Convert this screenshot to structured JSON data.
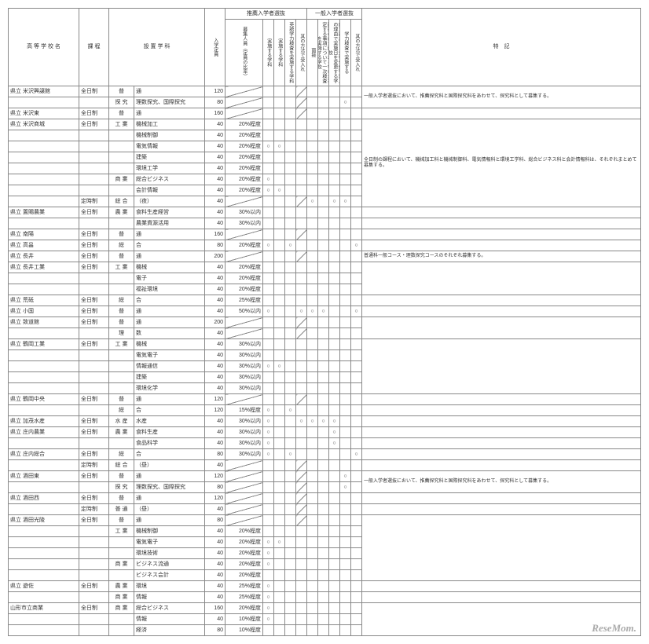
{
  "headers": {
    "school": "高 等 学 校 名",
    "type": "課 程",
    "dept": "設 置 学 科",
    "capacity": "入学定員",
    "rec_group": "推薦入学者選抜",
    "rec_num": "募集人員（定員の比率）",
    "rec_c1": "実施する学科",
    "rec_c2": "実施する学科",
    "rec_c3": "英語学力検査を実施する学科",
    "rec_c4": "其の方法で受入れ",
    "gen_group": "一般入学者選抜",
    "gen_c1": "面接",
    "gen_c2": "面接のほか課される学校が指定する事項について一次検査を実施する学校",
    "gen_c3": "創立記念日・生徒保健管理上の理由で実施日を変更する学校",
    "gen_c4": "学力検査で実施する",
    "gen_c5": "其の方法で受入れ",
    "notes": "特　記"
  },
  "watermark": "ReseMom.",
  "rows": [
    {
      "school": "県立 米沢興譲館",
      "type": "全日制",
      "dept_g": "普",
      "dept_s": "通",
      "cap": "120",
      "cols": [
        "",
        "",
        "",
        "diag",
        "",
        "",
        "",
        "",
        "",
        ""
      ],
      "note": "一般入学者選抜において、推薦探究科と国際探究科をあわせて、探究科として募集する。",
      "span": 2
    },
    {
      "school": "",
      "type": "",
      "dept_g": "探 究",
      "dept_s": "理数探究、国際探究",
      "cap": "80",
      "cols": [
        "",
        "",
        "",
        "diag",
        "",
        "",
        "",
        "○",
        "",
        ""
      ],
      "note": ""
    },
    {
      "school": "県立 米沢東",
      "type": "全日制",
      "dept_g": "普",
      "dept_s": "通",
      "cap": "160",
      "cols": [
        "",
        "",
        "",
        "diag",
        "",
        "",
        "",
        "",
        "",
        ""
      ],
      "note": ""
    },
    {
      "school": "県立 米沢商城",
      "type": "全日制",
      "dept_g": "工 業",
      "dept_s": "機械加工",
      "cap": "40",
      "pct": "20%程度",
      "cols": [
        "",
        "",
        "",
        "",
        "",
        "",
        "",
        "",
        "",
        ""
      ],
      "note": "全日制の課程において、機械加工科と機械制御科、電気情報科と環境工学科、総合ビジネス科と会計情報科は、それぞれまとめて募集する。",
      "span": 8
    },
    {
      "school": "",
      "type": "",
      "dept_g": "",
      "dept_s": "機械制御",
      "cap": "40",
      "pct": "20%程度",
      "cols": [
        "",
        "",
        "",
        "",
        "",
        "",
        "",
        "",
        "",
        ""
      ],
      "note": ""
    },
    {
      "school": "",
      "type": "",
      "dept_g": "",
      "dept_s": "電気情報",
      "cap": "40",
      "pct": "20%程度",
      "cols": [
        "○",
        "○",
        "",
        "",
        "",
        "",
        "",
        "",
        "",
        ""
      ],
      "note": ""
    },
    {
      "school": "",
      "type": "",
      "dept_g": "",
      "dept_s": "建築",
      "cap": "40",
      "pct": "20%程度",
      "cols": [
        "",
        "",
        "",
        "",
        "",
        "",
        "",
        "",
        "",
        ""
      ],
      "note": ""
    },
    {
      "school": "",
      "type": "",
      "dept_g": "",
      "dept_s": "環境工学",
      "cap": "40",
      "pct": "20%程度",
      "cols": [
        "",
        "",
        "",
        "",
        "",
        "",
        "",
        "",
        "",
        ""
      ],
      "note": ""
    },
    {
      "school": "",
      "type": "",
      "dept_g": "商 業",
      "dept_s": "総合ビジネス",
      "cap": "40",
      "pct": "20%程度",
      "cols": [
        "○",
        "",
        "",
        "",
        "",
        "",
        "",
        "",
        "",
        ""
      ],
      "note": ""
    },
    {
      "school": "",
      "type": "",
      "dept_g": "",
      "dept_s": "会計情報",
      "cap": "40",
      "pct": "20%程度",
      "cols": [
        "○",
        "○",
        "",
        "",
        "",
        "",
        "",
        "",
        "",
        ""
      ],
      "note": ""
    },
    {
      "school": "",
      "type": "定時制",
      "dept_g": "総 合",
      "dept_s": "（夜）",
      "cap": "40",
      "cols": [
        "",
        "",
        "",
        "diag",
        "○",
        "",
        "○",
        "○",
        "",
        "diag"
      ],
      "note": ""
    },
    {
      "school": "県立 置賜農業",
      "type": "全日制",
      "dept_g": "農 業",
      "dept_s": "食料生産経営",
      "cap": "40",
      "pct": "30%以内",
      "cols": [
        "",
        "",
        "",
        "",
        "",
        "",
        "",
        "",
        "",
        ""
      ],
      "note": ""
    },
    {
      "school": "",
      "type": "",
      "dept_g": "",
      "dept_s": "農業資源活用",
      "cap": "40",
      "pct": "30%以内",
      "cols": [
        "",
        "",
        "",
        "",
        "",
        "",
        "",
        "",
        "",
        ""
      ],
      "note": ""
    },
    {
      "school": "県立 南陽",
      "type": "全日制",
      "dept_g": "普",
      "dept_s": "通",
      "cap": "160",
      "cols": [
        "",
        "",
        "",
        "diag",
        "",
        "",
        "",
        "",
        "",
        ""
      ],
      "note": ""
    },
    {
      "school": "県立 高畠",
      "type": "全日制",
      "dept_g": "総",
      "dept_s": "合",
      "cap": "80",
      "pct": "20%程度",
      "cols": [
        "○",
        "",
        "○",
        "",
        "",
        "",
        "",
        "",
        "○",
        ""
      ],
      "note": ""
    },
    {
      "school": "県立 長井",
      "type": "全日制",
      "dept_g": "普",
      "dept_s": "通",
      "cap": "200",
      "cols": [
        "",
        "",
        "",
        "diag",
        "",
        "",
        "",
        "",
        "",
        ""
      ],
      "note": "普通科一般コース・理数探究コースのそれぞれ募集する。"
    },
    {
      "school": "県立 長井工業",
      "type": "全日制",
      "dept_g": "工 業",
      "dept_s": "機械",
      "cap": "40",
      "pct": "20%程度",
      "cols": [
        "",
        "",
        "",
        "",
        "",
        "",
        "",
        "",
        "",
        ""
      ],
      "note": "",
      "span": 3
    },
    {
      "school": "",
      "type": "",
      "dept_g": "",
      "dept_s": "電子",
      "cap": "40",
      "pct": "20%程度",
      "cols": [
        "",
        "",
        "",
        "",
        "",
        "",
        "",
        "",
        "",
        ""
      ],
      "note": ""
    },
    {
      "school": "",
      "type": "",
      "dept_g": "",
      "dept_s": "福祉環境",
      "cap": "40",
      "pct": "20%程度",
      "cols": [
        "",
        "",
        "",
        "",
        "",
        "",
        "",
        "",
        "",
        ""
      ],
      "note": ""
    },
    {
      "school": "県立 荒砥",
      "type": "全日制",
      "dept_g": "総",
      "dept_s": "合",
      "cap": "40",
      "pct": "25%程度",
      "cols": [
        "",
        "",
        "",
        "",
        "",
        "",
        "",
        "",
        "",
        ""
      ],
      "note": ""
    },
    {
      "school": "県立 小国",
      "type": "全日制",
      "dept_g": "普",
      "dept_s": "通",
      "cap": "40",
      "pct": "50%以内",
      "cols": [
        "○",
        "",
        "",
        "○",
        "○",
        "○",
        "",
        "",
        "○",
        ""
      ],
      "note": ""
    },
    {
      "school": "県立 致道館",
      "type": "全日制",
      "dept_g": "普",
      "dept_s": "通",
      "cap": "200",
      "cols": [
        "",
        "",
        "",
        "diag",
        "",
        "",
        "",
        "",
        "",
        ""
      ],
      "note": "",
      "span": 2
    },
    {
      "school": "",
      "type": "",
      "dept_g": "理",
      "dept_s": "数",
      "cap": "40",
      "cols": [
        "",
        "",
        "",
        "diag",
        "",
        "",
        "",
        "",
        "",
        ""
      ],
      "note": ""
    },
    {
      "school": "県立 鶴岡工業",
      "type": "全日制",
      "dept_g": "工 業",
      "dept_s": "機械",
      "cap": "40",
      "pct": "30%以内",
      "cols": [
        "",
        "",
        "",
        "",
        "",
        "",
        "",
        "",
        "",
        ""
      ],
      "note": "",
      "span": 5
    },
    {
      "school": "",
      "type": "",
      "dept_g": "",
      "dept_s": "電気電子",
      "cap": "40",
      "pct": "30%以内",
      "cols": [
        "",
        "",
        "",
        "",
        "",
        "",
        "",
        "",
        "",
        ""
      ],
      "note": ""
    },
    {
      "school": "",
      "type": "",
      "dept_g": "",
      "dept_s": "情報通信",
      "cap": "40",
      "pct": "30%以内",
      "cols": [
        "○",
        "○",
        "",
        "",
        "",
        "",
        "",
        "",
        "",
        ""
      ],
      "note": ""
    },
    {
      "school": "",
      "type": "",
      "dept_g": "",
      "dept_s": "建築",
      "cap": "40",
      "pct": "30%以内",
      "cols": [
        "",
        "",
        "",
        "",
        "",
        "",
        "",
        "",
        "",
        ""
      ],
      "note": ""
    },
    {
      "school": "",
      "type": "",
      "dept_g": "",
      "dept_s": "環境化学",
      "cap": "40",
      "pct": "30%以内",
      "cols": [
        "",
        "",
        "",
        "",
        "",
        "",
        "",
        "",
        "",
        ""
      ],
      "note": ""
    },
    {
      "school": "県立 鶴岡中央",
      "type": "全日制",
      "dept_g": "普",
      "dept_s": "通",
      "cap": "120",
      "cols": [
        "",
        "",
        "",
        "diag",
        "",
        "",
        "",
        "",
        "",
        ""
      ],
      "note": ""
    },
    {
      "school": "",
      "type": "",
      "dept_g": "総",
      "dept_s": "合",
      "cap": "120",
      "pct": "15%程度",
      "cols": [
        "○",
        "",
        "○",
        "",
        "",
        "",
        "",
        "",
        "",
        ""
      ],
      "note": ""
    },
    {
      "school": "県立 加茂水産",
      "type": "全日制",
      "dept_g": "水 産",
      "dept_s": "水産",
      "cap": "40",
      "pct": "30%以内",
      "cols": [
        "○",
        "",
        "",
        "○",
        "○",
        "○",
        "○",
        "",
        "",
        ""
      ],
      "note": ""
    },
    {
      "school": "県立 庄内農業",
      "type": "全日制",
      "dept_g": "農 業",
      "dept_s": "食料生産",
      "cap": "40",
      "pct": "30%以内",
      "cols": [
        "○",
        "",
        "",
        "",
        "",
        "",
        "○",
        "",
        "",
        ""
      ],
      "note": ""
    },
    {
      "school": "",
      "type": "",
      "dept_g": "",
      "dept_s": "食品科学",
      "cap": "40",
      "pct": "30%以内",
      "cols": [
        "○",
        "",
        "",
        "",
        "",
        "",
        "○",
        "",
        "",
        ""
      ],
      "note": ""
    },
    {
      "school": "県立 庄内総合",
      "type": "全日制",
      "dept_g": "総",
      "dept_s": "合",
      "cap": "80",
      "pct": "30%以内",
      "cols": [
        "○",
        "",
        "○",
        "",
        "",
        "",
        "",
        "",
        "○",
        ""
      ],
      "note": ""
    },
    {
      "school": "",
      "type": "定時制",
      "dept_g": "総 合",
      "dept_s": "（昼）",
      "cap": "40",
      "cols": [
        "",
        "",
        "",
        "diag",
        "",
        "",
        "",
        "",
        "",
        "diag"
      ],
      "note": ""
    },
    {
      "school": "県立 酒田東",
      "type": "全日制",
      "dept_g": "普",
      "dept_s": "通",
      "cap": "120",
      "cols": [
        "",
        "",
        "",
        "diag",
        "",
        "",
        "",
        "○",
        "",
        ""
      ],
      "note": "一般入学者選抜において、推薦探究科と国際探究科をあわせて、探究科として募集する。",
      "span": 2
    },
    {
      "school": "",
      "type": "",
      "dept_g": "探 究",
      "dept_s": "理数探究、国際探究",
      "cap": "80",
      "cols": [
        "",
        "",
        "",
        "diag",
        "",
        "",
        "",
        "○",
        "",
        ""
      ],
      "note": ""
    },
    {
      "school": "県立 酒田西",
      "type": "全日制",
      "dept_g": "普",
      "dept_s": "通",
      "cap": "120",
      "cols": [
        "",
        "",
        "",
        "diag",
        "",
        "",
        "",
        "",
        "",
        ""
      ],
      "note": ""
    },
    {
      "school": "",
      "type": "定時制",
      "dept_g": "普 通",
      "dept_s": "（昼）",
      "cap": "40",
      "cols": [
        "",
        "",
        "",
        "diag",
        "",
        "",
        "",
        "",
        "",
        "diag"
      ],
      "note": ""
    },
    {
      "school": "県立 酒田光陵",
      "type": "全日制",
      "dept_g": "普",
      "dept_s": "通",
      "cap": "80",
      "cols": [
        "",
        "",
        "",
        "diag",
        "",
        "",
        "",
        "",
        "",
        ""
      ],
      "note": "",
      "span": 6
    },
    {
      "school": "",
      "type": "",
      "dept_g": "工 業",
      "dept_s": "機械制御",
      "cap": "40",
      "pct": "20%程度",
      "cols": [
        "",
        "",
        "",
        "",
        "",
        "",
        "",
        "",
        "",
        ""
      ],
      "note": ""
    },
    {
      "school": "",
      "type": "",
      "dept_g": "",
      "dept_s": "電気電子",
      "cap": "40",
      "pct": "20%程度",
      "cols": [
        "○",
        "○",
        "",
        "",
        "",
        "",
        "",
        "",
        "",
        ""
      ],
      "note": ""
    },
    {
      "school": "",
      "type": "",
      "dept_g": "",
      "dept_s": "環境技術",
      "cap": "40",
      "pct": "20%程度",
      "cols": [
        "○",
        "",
        "",
        "",
        "",
        "",
        "",
        "",
        "",
        ""
      ],
      "note": ""
    },
    {
      "school": "",
      "type": "",
      "dept_g": "商 業",
      "dept_s": "ビジネス流通",
      "cap": "40",
      "pct": "20%程度",
      "cols": [
        "○",
        "",
        "",
        "",
        "",
        "",
        "",
        "",
        "",
        ""
      ],
      "note": ""
    },
    {
      "school": "",
      "type": "",
      "dept_g": "",
      "dept_s": "ビジネス会計",
      "cap": "40",
      "pct": "20%程度",
      "cols": [
        "",
        "",
        "",
        "",
        "",
        "",
        "",
        "",
        "",
        ""
      ],
      "note": ""
    },
    {
      "school": "県立 遊佐",
      "type": "全日制",
      "dept_g": "農 業",
      "dept_s": "環境",
      "cap": "40",
      "pct": "25%程度",
      "cols": [
        "○",
        "",
        "",
        "",
        "",
        "",
        "",
        "",
        "",
        ""
      ],
      "note": ""
    },
    {
      "school": "",
      "type": "",
      "dept_g": "商 業",
      "dept_s": "情報",
      "cap": "40",
      "pct": "25%程度",
      "cols": [
        "○",
        "",
        "",
        "",
        "",
        "",
        "",
        "",
        "",
        ""
      ],
      "note": ""
    },
    {
      "school": "山形市立商業",
      "type": "全日制",
      "dept_g": "商 業",
      "dept_s": "総合ビジネス",
      "cap": "160",
      "pct": "20%程度",
      "cols": [
        "○",
        "",
        "",
        "",
        "",
        "",
        "",
        "",
        "",
        ""
      ],
      "note": "",
      "span": 3
    },
    {
      "school": "",
      "type": "",
      "dept_g": "",
      "dept_s": "情報",
      "cap": "40",
      "pct": "10%程度",
      "cols": [
        "○",
        "",
        "",
        "",
        "",
        "",
        "",
        "",
        "",
        ""
      ],
      "note": ""
    },
    {
      "school": "",
      "type": "",
      "dept_g": "",
      "dept_s": "経済",
      "cap": "80",
      "pct": "10%程度",
      "cols": [
        "",
        "",
        "",
        "",
        "",
        "",
        "",
        "",
        "",
        ""
      ],
      "note": ""
    }
  ]
}
